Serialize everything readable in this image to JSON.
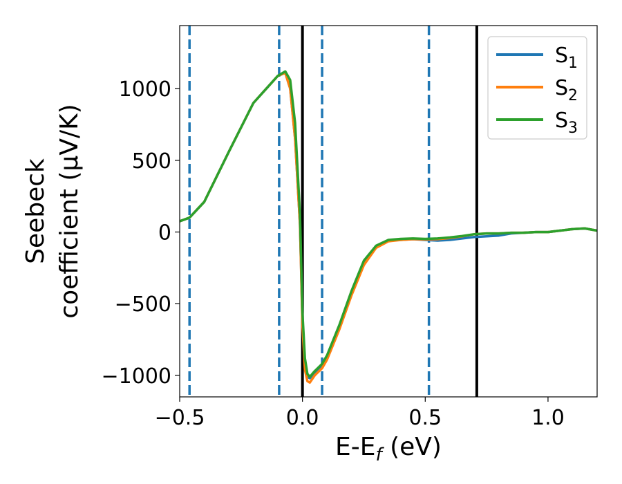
{
  "chart_data": {
    "type": "line",
    "title": "",
    "xlabel": {
      "base": "E-E",
      "sub": "f",
      "suffix": " (eV)"
    },
    "ylabel": {
      "line1": "Seebeck",
      "line2": "coefficient  (μV/K)"
    },
    "xlim": [
      -0.5,
      1.2
    ],
    "ylim": [
      -1150,
      1440
    ],
    "xticks": [
      {
        "value": -0.5,
        "label": "−0.5"
      },
      {
        "value": 0.0,
        "label": "0.0"
      },
      {
        "value": 0.5,
        "label": "0.5"
      },
      {
        "value": 1.0,
        "label": "1.0"
      }
    ],
    "yticks": [
      {
        "value": -1000,
        "label": "−1000"
      },
      {
        "value": -500,
        "label": "−500"
      },
      {
        "value": 0,
        "label": "0"
      },
      {
        "value": 500,
        "label": "500"
      },
      {
        "value": 1000,
        "label": "1000"
      }
    ],
    "grid": false,
    "legend_position": "top-right",
    "vertical_lines": [
      {
        "x": -0.46,
        "style": "dashed",
        "color": "#1f77b4"
      },
      {
        "x": -0.095,
        "style": "dashed",
        "color": "#1f77b4"
      },
      {
        "x": 0.0,
        "style": "solid",
        "color": "#000000"
      },
      {
        "x": 0.08,
        "style": "dashed",
        "color": "#1f77b4"
      },
      {
        "x": 0.515,
        "style": "dashed",
        "color": "#1f77b4"
      },
      {
        "x": 0.71,
        "style": "solid",
        "color": "#000000"
      }
    ],
    "series": [
      {
        "name": {
          "base": "S",
          "sub": "1"
        },
        "color": "#1f77b4",
        "x": [
          -0.5,
          -0.46,
          -0.4,
          -0.3,
          -0.2,
          -0.1,
          -0.07,
          -0.05,
          -0.03,
          -0.01,
          0.0,
          0.01,
          0.02,
          0.03,
          0.05,
          0.08,
          0.1,
          0.15,
          0.2,
          0.25,
          0.3,
          0.35,
          0.4,
          0.45,
          0.5,
          0.55,
          0.6,
          0.65,
          0.7,
          0.75,
          0.8,
          0.85,
          0.9,
          0.95,
          1.0,
          1.05,
          1.1,
          1.15,
          1.2
        ],
        "y": [
          75,
          100,
          210,
          560,
          900,
          1090,
          1110,
          1000,
          650,
          50,
          -620,
          -920,
          -1010,
          -1020,
          -980,
          -930,
          -870,
          -660,
          -420,
          -210,
          -100,
          -60,
          -55,
          -50,
          -55,
          -60,
          -55,
          -45,
          -35,
          -30,
          -25,
          -10,
          -5,
          0,
          0,
          10,
          20,
          25,
          10
        ]
      },
      {
        "name": {
          "base": "S",
          "sub": "2"
        },
        "color": "#ff7f0e",
        "x": [
          -0.5,
          -0.46,
          -0.4,
          -0.3,
          -0.2,
          -0.1,
          -0.07,
          -0.05,
          -0.03,
          -0.01,
          0.0,
          0.01,
          0.02,
          0.03,
          0.05,
          0.08,
          0.1,
          0.15,
          0.2,
          0.25,
          0.3,
          0.35,
          0.4,
          0.45,
          0.5,
          0.55,
          0.6,
          0.65,
          0.7,
          0.75,
          0.8,
          0.85,
          0.9,
          0.95,
          1.0,
          1.05,
          1.1,
          1.15,
          1.2
        ],
        "y": [
          75,
          100,
          210,
          560,
          900,
          1090,
          1110,
          1000,
          650,
          50,
          -650,
          -960,
          -1040,
          -1050,
          -1000,
          -950,
          -890,
          -680,
          -440,
          -230,
          -110,
          -65,
          -55,
          -50,
          -52,
          -50,
          -42,
          -30,
          -15,
          -10,
          -10,
          -5,
          -5,
          0,
          0,
          10,
          20,
          25,
          10
        ]
      },
      {
        "name": {
          "base": "S",
          "sub": "3"
        },
        "color": "#2ca02c",
        "x": [
          -0.5,
          -0.46,
          -0.4,
          -0.3,
          -0.2,
          -0.1,
          -0.07,
          -0.05,
          -0.03,
          -0.01,
          0.0,
          0.01,
          0.02,
          0.03,
          0.05,
          0.08,
          0.1,
          0.15,
          0.2,
          0.25,
          0.3,
          0.35,
          0.4,
          0.45,
          0.5,
          0.55,
          0.6,
          0.65,
          0.7,
          0.75,
          0.8,
          0.85,
          0.9,
          0.95,
          1.0,
          1.05,
          1.1,
          1.15,
          1.2
        ],
        "y": [
          75,
          100,
          210,
          560,
          900,
          1090,
          1120,
          1060,
          760,
          120,
          -560,
          -880,
          -990,
          -1010,
          -970,
          -920,
          -860,
          -650,
          -410,
          -200,
          -95,
          -55,
          -48,
          -45,
          -48,
          -45,
          -38,
          -28,
          -15,
          -10,
          -10,
          -5,
          -5,
          0,
          0,
          10,
          20,
          25,
          10
        ]
      }
    ]
  }
}
